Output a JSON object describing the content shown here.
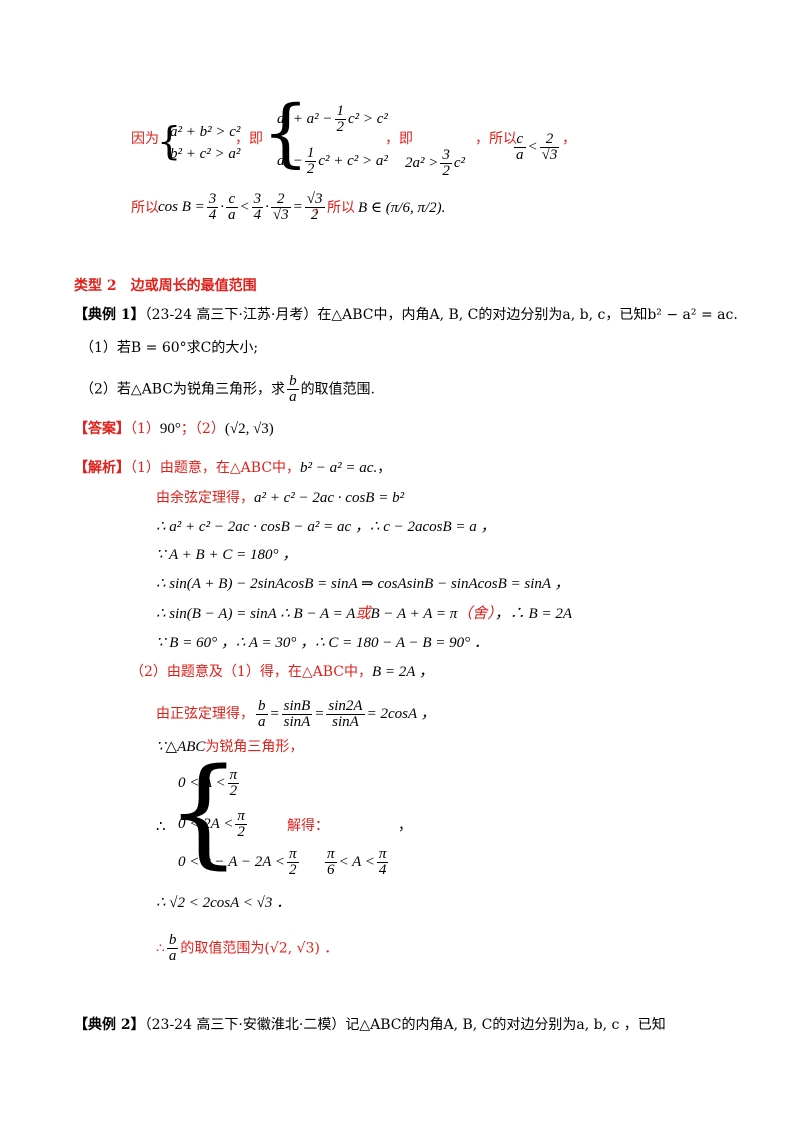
{
  "top_block": {
    "because_label": "因为",
    "sys1_row1": "a² + b² > c²",
    "sys1_row2": "b² + c² > a²",
    "ji_label": "，即",
    "sys2_row1_a": "a² + a² −",
    "sys2_row1_b": "c² > c²",
    "sys2_row2_a": "a² −",
    "sys2_row2_b": "c² + c² > a²",
    "ji2_label": "，即",
    "ineq_a": "2a² >",
    "ineq_b": "c²",
    "suoyi_label": "，所以",
    "cos_prefix": "所以",
    "cos_expr": "cos B =",
    "cos_result_label": "，所以",
    "range_B": "B ∈ (π/6, π/2)."
  },
  "type2_heading": "类型 2　边或周长的最值范围",
  "example1": {
    "label": "【典例 1】",
    "source": "（23-24 高三下·江苏·月考）",
    "text": "在△ABC中，内角A, B, C的对边分别为a, b, c，已知b² − a² = ac.",
    "q1": "（1）若B = 60°求C的大小;",
    "q2_a": "（2）若",
    "q2_b": "△ABC为锐角三角形，求",
    "q2_c": "的取值范围."
  },
  "answer": {
    "label": "【答案】",
    "part1": "（1）",
    "val1": "90°",
    "sep": "；（2）",
    "val2": "(√2, √3)"
  },
  "analysis": {
    "label": "【解析】",
    "l1_red": "（1）由题意，在△ABC中，",
    "l1_math": "b² − a² = ac.",
    "l1_tail": "，",
    "l2_red": "由余弦定理得，",
    "l2_math": "a² + c² − 2ac · cosB = b²",
    "l3": "∴ a² + c² − 2ac · cosB − a² = ac ，∴ c − 2acosB = a ，",
    "l4": "∵ A + B + C = 180° ，",
    "l5": "∴ sin(A + B) − 2sinAcosB = sinA ⇒ cosAsinB − sinAcosB = sinA ，",
    "l6_a": "∴ sin(B − A) = sinA ∴ B − A = A",
    "l6_or": "或",
    "l6_b": "B − A + A = π",
    "l6_she": "（舍）",
    "l6_c": "，∴ B = 2A",
    "l7": "∵ B = 60° ，∴ A = 30° ，∴ C = 180 − A − B = 90° ．",
    "p2_l1_red": "（2）由题意及（1）得，在△ABC中，",
    "p2_l1_math": "B = 2A ，",
    "p2_l2_red": "由正弦定理得，",
    "p2_l2_eq": "= 2cosA ，",
    "p2_l3_a": "∵△ABC",
    "p2_l3_red": "为锐角三角形，",
    "sys_r1": "0 < A <",
    "sys_r2": "0 < 2A <",
    "sys_r3": "0 < π − A − 2A <",
    "jiede": "解得：",
    "comma": "，",
    "sol_a": "< A <",
    "res1": "∴ √2 < 2cosA < √3 ．",
    "res2_a": "∴",
    "res2_b": "的取值范围为(√2, √3) ．"
  },
  "example2": {
    "label": "【典例 2】",
    "source": "（23-24 高三下·安徽淮北·二模）",
    "text": "记△ABC的内角A, B, C的对边分别为a, b, c ，已知"
  }
}
